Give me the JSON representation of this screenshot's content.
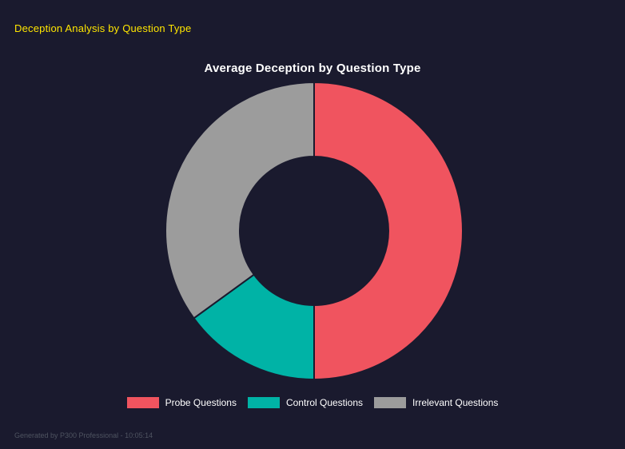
{
  "header": {
    "title": "Deception Analysis by Question Type"
  },
  "chart_data": {
    "type": "pie",
    "subtype": "doughnut",
    "title": "Average Deception by Question Type",
    "start_angle": 0,
    "direction": "clockwise",
    "cutout_percent": 50,
    "legend_position": "bottom",
    "segments": [
      {
        "label": "Probe Questions",
        "value": 50,
        "color": "#f0545f"
      },
      {
        "label": "Control Questions",
        "value": 15,
        "color": "#00b3a6"
      },
      {
        "label": "Irrelevant Questions",
        "value": 35,
        "color": "#9c9c9c"
      }
    ]
  },
  "footer": {
    "text": "Generated by P300 Professional - 10:05:14"
  },
  "colors": {
    "background": "#1a1a2e",
    "header_text": "#ffe600",
    "title_text": "#ffffff",
    "legend_text": "#ffffff",
    "footer_text": "#4e5360"
  }
}
